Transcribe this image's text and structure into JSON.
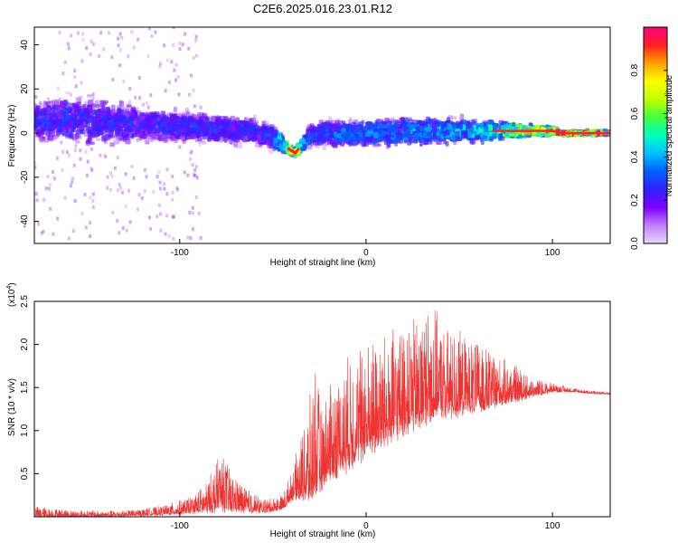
{
  "title": "C2E6.2025.016.23.01.R12",
  "colors": {
    "snr_line": "#ee3333",
    "trace_core": "#ff2222",
    "background": "#ffffff"
  },
  "colormap_stops": [
    "#e8d8ff",
    "#c080ff",
    "#8000ff",
    "#3020ff",
    "#0060ff",
    "#00c0ff",
    "#00ffc0",
    "#40ff40",
    "#c0ff00",
    "#ffff00",
    "#ffa000",
    "#ff2020",
    "#ff0080"
  ],
  "chart_data": [
    {
      "type": "heatmap",
      "name": "spectrogram",
      "xlabel": "Height of straight line (km)",
      "ylabel": "Frequency (Hz)",
      "xlim": [
        -178,
        131
      ],
      "ylim": [
        -50,
        48
      ],
      "xticks": [
        -100,
        0,
        100
      ],
      "yticks": [
        -40,
        -20,
        0,
        20,
        40
      ],
      "colorbar": {
        "label": "Normalized spectral amplitude",
        "range": [
          0,
          1
        ],
        "ticks": [
          "0.0",
          "0.2",
          "0.4",
          "0.6",
          "0.8"
        ],
        "tick_values": [
          0.0,
          0.2,
          0.4,
          0.6,
          0.8
        ]
      },
      "trace": {
        "x": [
          -178,
          -160,
          -140,
          -120,
          -100,
          -80,
          -60,
          -50,
          -45,
          -40,
          -38,
          -35,
          -30,
          -20,
          -10,
          0,
          20,
          40,
          60,
          80,
          100,
          105,
          131
        ],
        "center_hz": [
          6,
          6,
          5,
          4,
          3,
          2,
          1,
          -2,
          -5,
          -8,
          -9,
          -6,
          -1,
          0,
          0,
          0,
          1,
          1,
          1,
          1,
          1,
          0,
          0
        ],
        "spread_hz": [
          16,
          18,
          18,
          14,
          12,
          11,
          10,
          9,
          6,
          3,
          3,
          5,
          8,
          10,
          10,
          10,
          10,
          10,
          8,
          5,
          3,
          1,
          1
        ],
        "amplitude": [
          0.25,
          0.28,
          0.27,
          0.25,
          0.28,
          0.27,
          0.27,
          0.3,
          0.6,
          0.95,
          0.9,
          0.5,
          0.3,
          0.32,
          0.35,
          0.35,
          0.38,
          0.4,
          0.45,
          0.7,
          0.85,
          0.95,
          0.92
        ]
      }
    },
    {
      "type": "line",
      "name": "snr",
      "xlabel": "Height of straight line (km)",
      "ylabel": "SNR (10 * v/v)",
      "y_multiplier": "(x10",
      "y_multiplier_exp": "4",
      "y_multiplier_close": ")",
      "xlim": [
        -178,
        131
      ],
      "ylim": [
        0,
        2.5
      ],
      "xticks": [
        -100,
        0,
        100
      ],
      "yticks": [
        0.5,
        1.0,
        1.5,
        2.0,
        2.5
      ],
      "ytick_labels": [
        "0.5",
        "1.0",
        "1.5",
        "2.0",
        "2.5"
      ],
      "envelope": {
        "x": [
          -178,
          -160,
          -140,
          -125,
          -110,
          -95,
          -85,
          -78,
          -72,
          -65,
          -55,
          -45,
          -40,
          -35,
          -30,
          -27,
          -24,
          -20,
          -10,
          0,
          10,
          20,
          30,
          35,
          40,
          50,
          60,
          70,
          80,
          90,
          100,
          110,
          120,
          131
        ],
        "base": [
          0.0,
          0.0,
          0.0,
          0.01,
          0.02,
          0.04,
          0.06,
          0.08,
          0.08,
          0.06,
          0.05,
          0.08,
          0.2,
          0.25,
          0.2,
          0.3,
          0.35,
          0.45,
          0.6,
          0.75,
          0.9,
          1.0,
          1.1,
          1.15,
          1.2,
          1.2,
          1.25,
          1.3,
          1.35,
          1.4,
          1.45,
          1.45,
          1.43,
          1.42
        ],
        "peak": [
          0.12,
          0.08,
          0.07,
          0.08,
          0.12,
          0.22,
          0.4,
          0.78,
          0.5,
          0.35,
          0.2,
          0.25,
          0.5,
          0.9,
          1.35,
          1.85,
          1.2,
          1.5,
          1.8,
          2.0,
          2.05,
          2.15,
          2.3,
          2.5,
          2.2,
          2.1,
          2.0,
          1.85,
          1.75,
          1.6,
          1.55,
          1.5,
          1.47,
          1.44
        ],
        "noise": [
          0.05,
          0.03,
          0.02,
          0.03,
          0.06,
          0.1,
          0.15,
          0.3,
          0.2,
          0.15,
          0.08,
          0.1,
          0.2,
          0.4,
          0.6,
          0.7,
          0.5,
          0.6,
          0.7,
          0.75,
          0.7,
          0.65,
          0.6,
          0.55,
          0.5,
          0.45,
          0.35,
          0.25,
          0.2,
          0.1,
          0.06,
          0.02,
          0.02,
          0.02
        ]
      }
    }
  ]
}
